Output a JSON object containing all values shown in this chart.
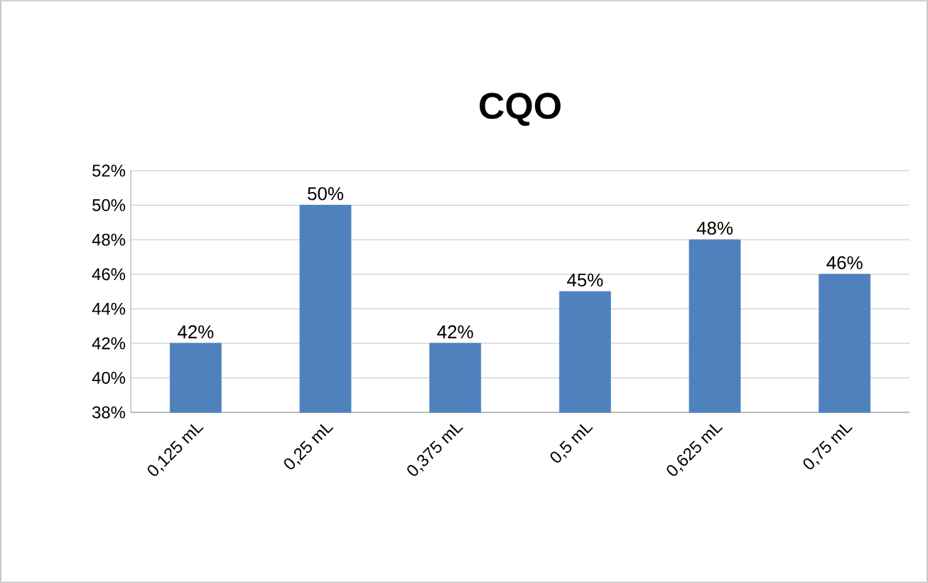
{
  "chart_data": {
    "type": "bar",
    "title": "CQO",
    "categories": [
      "0,125 mL",
      "0,25 mL",
      "0,375 mL",
      "0,5 mL",
      "0,625 mL",
      "0,75 mL"
    ],
    "values": [
      42,
      50,
      42,
      45,
      48,
      46
    ],
    "value_labels": [
      "42%",
      "50%",
      "42%",
      "45%",
      "48%",
      "46%"
    ],
    "color": "#4f81bd",
    "ylim": [
      38,
      52
    ],
    "yticks": [
      {
        "value": 38,
        "label": "38%"
      },
      {
        "value": 40,
        "label": "40%"
      },
      {
        "value": 42,
        "label": "42%"
      },
      {
        "value": 44,
        "label": "44%"
      },
      {
        "value": 46,
        "label": "46%"
      },
      {
        "value": 48,
        "label": "48%"
      },
      {
        "value": 50,
        "label": "50%"
      },
      {
        "value": 52,
        "label": "52%"
      }
    ],
    "grid": "y"
  }
}
